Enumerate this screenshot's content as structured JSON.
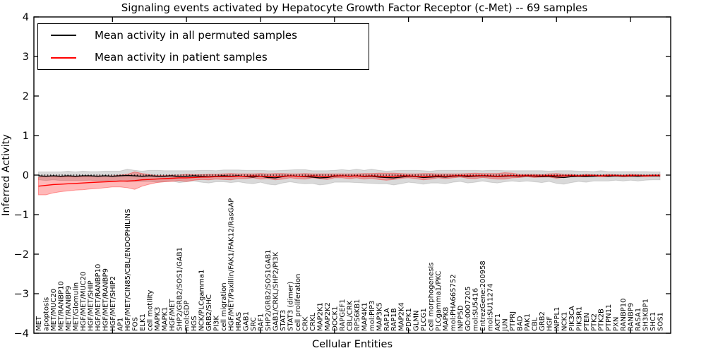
{
  "chart_data": {
    "type": "line",
    "title": "Signaling events activated by Hepatocyte Growth Factor Receptor (c-Met) -- 69 samples",
    "xlabel": "Cellular Entities",
    "ylabel": "Inferred Activity",
    "ylim": [
      -4,
      4
    ],
    "ytick_labels": [
      "4",
      "3",
      "2",
      "1",
      "0",
      "−1",
      "−2",
      "−3",
      "−4"
    ],
    "grid": false,
    "legend_position": "upper left",
    "zero_line": true,
    "x_major_tick_every": 10,
    "categories": [
      "MET",
      "apoptosis",
      "MET/MUC20",
      "MET/RANBP10",
      "MET/RANBP9",
      "MET/Glomulin",
      "HGF/MET/MUC20",
      "HGF/MET/SHIP",
      "HGF/MET/RANBP10",
      "HGF/MET/RANBP9",
      "HGF/MET/SHIP2",
      "AP1",
      "HGF/MET/CIN85/CBL/ENDOPHILINS",
      "FOS",
      "ELK1",
      "cell motility",
      "MAPK3",
      "MAPK1",
      "HGF/MET",
      "SHP2/GRB2/SOS1/GAB1",
      "mol:GDP",
      "HGS",
      "NCK/PLCgamma1",
      "GRB2/SHC",
      "PI3K",
      "cell migration",
      "HGF/MET/Paxillin/FAK1/FAK12/RasGAP",
      "HRAS",
      "GAB1",
      "SRC",
      "RAF1",
      "SHP2/GRB2/SOS1GAB1",
      "GAB1/CRKL/SHP2/PI3K",
      "STAT3",
      "STAT3 (dimer)",
      "cell proliferation",
      "CRK",
      "CRKL",
      "MAP2K1",
      "MAP2K2",
      "DOCK1",
      "RAPGEF1",
      "CBL/CRK",
      "RPS6KB1",
      "MAP4K1",
      "mol:PIP3",
      "MAP3K5",
      "RAP1A",
      "RAP1B",
      "MAP2K4",
      "PDPK1",
      "GLMN",
      "PLCG1",
      "cell morphogenesis",
      "PLCgamma1/PKC",
      "MAPK8",
      "mol:PHA665752",
      "INPP5D",
      "GO:0007205",
      "mol:SU5416",
      "EntrezGene:200958",
      "mol:SU11274",
      "AKT1",
      "JUN",
      "PTPRJ",
      "BAD",
      "PAK1",
      "CBL",
      "GRB2",
      "HGF",
      "INPPL1",
      "NCK1",
      "PIK3CA",
      "PIK3R1",
      "PTEN",
      "PTK2",
      "PTK2B",
      "PTPN11",
      "PXN",
      "RANBP10",
      "RANBP9",
      "RASA1",
      "SH3KBP1",
      "SHC1",
      "SOS1"
    ],
    "series": [
      {
        "name": "Mean activity in all permuted samples",
        "color": "#000000",
        "values": [
          -0.02,
          -0.03,
          -0.02,
          -0.03,
          -0.02,
          -0.03,
          -0.02,
          -0.02,
          -0.03,
          -0.02,
          -0.03,
          -0.02,
          -0.01,
          -0.02,
          -0.03,
          -0.02,
          -0.03,
          -0.03,
          -0.02,
          -0.04,
          -0.03,
          -0.02,
          -0.03,
          -0.04,
          -0.03,
          -0.02,
          -0.03,
          -0.02,
          -0.04,
          -0.05,
          -0.03,
          -0.06,
          -0.07,
          -0.04,
          -0.02,
          -0.03,
          -0.04,
          -0.05,
          -0.07,
          -0.06,
          -0.03,
          -0.02,
          -0.03,
          -0.02,
          -0.04,
          -0.03,
          -0.05,
          -0.06,
          -0.07,
          -0.05,
          -0.03,
          -0.04,
          -0.06,
          -0.05,
          -0.04,
          -0.05,
          -0.03,
          -0.02,
          -0.04,
          -0.03,
          -0.02,
          -0.03,
          -0.04,
          -0.03,
          -0.02,
          -0.03,
          -0.02,
          -0.03,
          -0.04,
          -0.03,
          -0.05,
          -0.06,
          -0.04,
          -0.03,
          -0.04,
          -0.03,
          -0.02,
          -0.03,
          -0.02,
          -0.03,
          -0.02,
          -0.03,
          -0.02,
          -0.02,
          -0.02
        ],
        "std": [
          0.1,
          0.11,
          0.1,
          0.11,
          0.12,
          0.11,
          0.12,
          0.11,
          0.12,
          0.12,
          0.13,
          0.12,
          0.16,
          0.14,
          0.13,
          0.14,
          0.15,
          0.14,
          0.13,
          0.15,
          0.14,
          0.13,
          0.15,
          0.16,
          0.14,
          0.15,
          0.16,
          0.15,
          0.16,
          0.17,
          0.15,
          0.17,
          0.18,
          0.16,
          0.15,
          0.17,
          0.18,
          0.16,
          0.18,
          0.17,
          0.15,
          0.16,
          0.15,
          0.17,
          0.16,
          0.18,
          0.17,
          0.16,
          0.18,
          0.17,
          0.15,
          0.16,
          0.17,
          0.15,
          0.16,
          0.17,
          0.15,
          0.14,
          0.16,
          0.15,
          0.13,
          0.15,
          0.16,
          0.14,
          0.13,
          0.14,
          0.13,
          0.14,
          0.15,
          0.13,
          0.16,
          0.17,
          0.15,
          0.13,
          0.14,
          0.12,
          0.13,
          0.12,
          0.11,
          0.12,
          0.11,
          0.12,
          0.11,
          0.1,
          0.1
        ]
      },
      {
        "name": "Mean activity in patient samples",
        "color": "#ff0000",
        "values": [
          -0.28,
          -0.26,
          -0.24,
          -0.23,
          -0.22,
          -0.21,
          -0.2,
          -0.19,
          -0.18,
          -0.17,
          -0.16,
          -0.15,
          -0.15,
          -0.14,
          -0.12,
          -0.11,
          -0.1,
          -0.09,
          -0.08,
          -0.07,
          -0.07,
          -0.06,
          -0.05,
          -0.05,
          -0.04,
          -0.04,
          -0.04,
          -0.03,
          -0.03,
          -0.02,
          -0.03,
          -0.03,
          -0.04,
          -0.03,
          -0.02,
          -0.03,
          -0.03,
          -0.02,
          -0.03,
          -0.04,
          -0.02,
          -0.02,
          -0.03,
          -0.02,
          -0.03,
          -0.02,
          -0.03,
          -0.04,
          -0.03,
          -0.02,
          -0.02,
          -0.03,
          -0.04,
          -0.03,
          -0.02,
          -0.03,
          -0.02,
          -0.01,
          -0.02,
          -0.02,
          -0.01,
          -0.02,
          -0.03,
          -0.02,
          -0.01,
          -0.02,
          -0.01,
          -0.02,
          -0.02,
          -0.01,
          -0.02,
          -0.02,
          -0.01,
          -0.02,
          -0.01,
          -0.01,
          -0.02,
          -0.01,
          -0.01,
          -0.02,
          -0.01,
          -0.01,
          -0.02,
          -0.01,
          -0.01
        ],
        "std": [
          0.22,
          0.24,
          0.21,
          0.19,
          0.18,
          0.17,
          0.17,
          0.16,
          0.16,
          0.15,
          0.14,
          0.15,
          0.17,
          0.22,
          0.16,
          0.12,
          0.09,
          0.08,
          0.08,
          0.07,
          0.09,
          0.07,
          0.06,
          0.07,
          0.06,
          0.07,
          0.08,
          0.06,
          0.06,
          0.05,
          0.07,
          0.06,
          0.08,
          0.07,
          0.05,
          0.06,
          0.07,
          0.05,
          0.06,
          0.07,
          0.05,
          0.05,
          0.06,
          0.05,
          0.07,
          0.06,
          0.08,
          0.09,
          0.08,
          0.06,
          0.05,
          0.06,
          0.08,
          0.07,
          0.05,
          0.06,
          0.05,
          0.04,
          0.06,
          0.07,
          0.05,
          0.06,
          0.07,
          0.08,
          0.06,
          0.04,
          0.03,
          0.04,
          0.03,
          0.04,
          0.06,
          0.04,
          0.03,
          0.02,
          0.03,
          0.02,
          0.02,
          0.03,
          0.02,
          0.02,
          0.03,
          0.02,
          0.02,
          0.02,
          0.02
        ]
      }
    ]
  }
}
